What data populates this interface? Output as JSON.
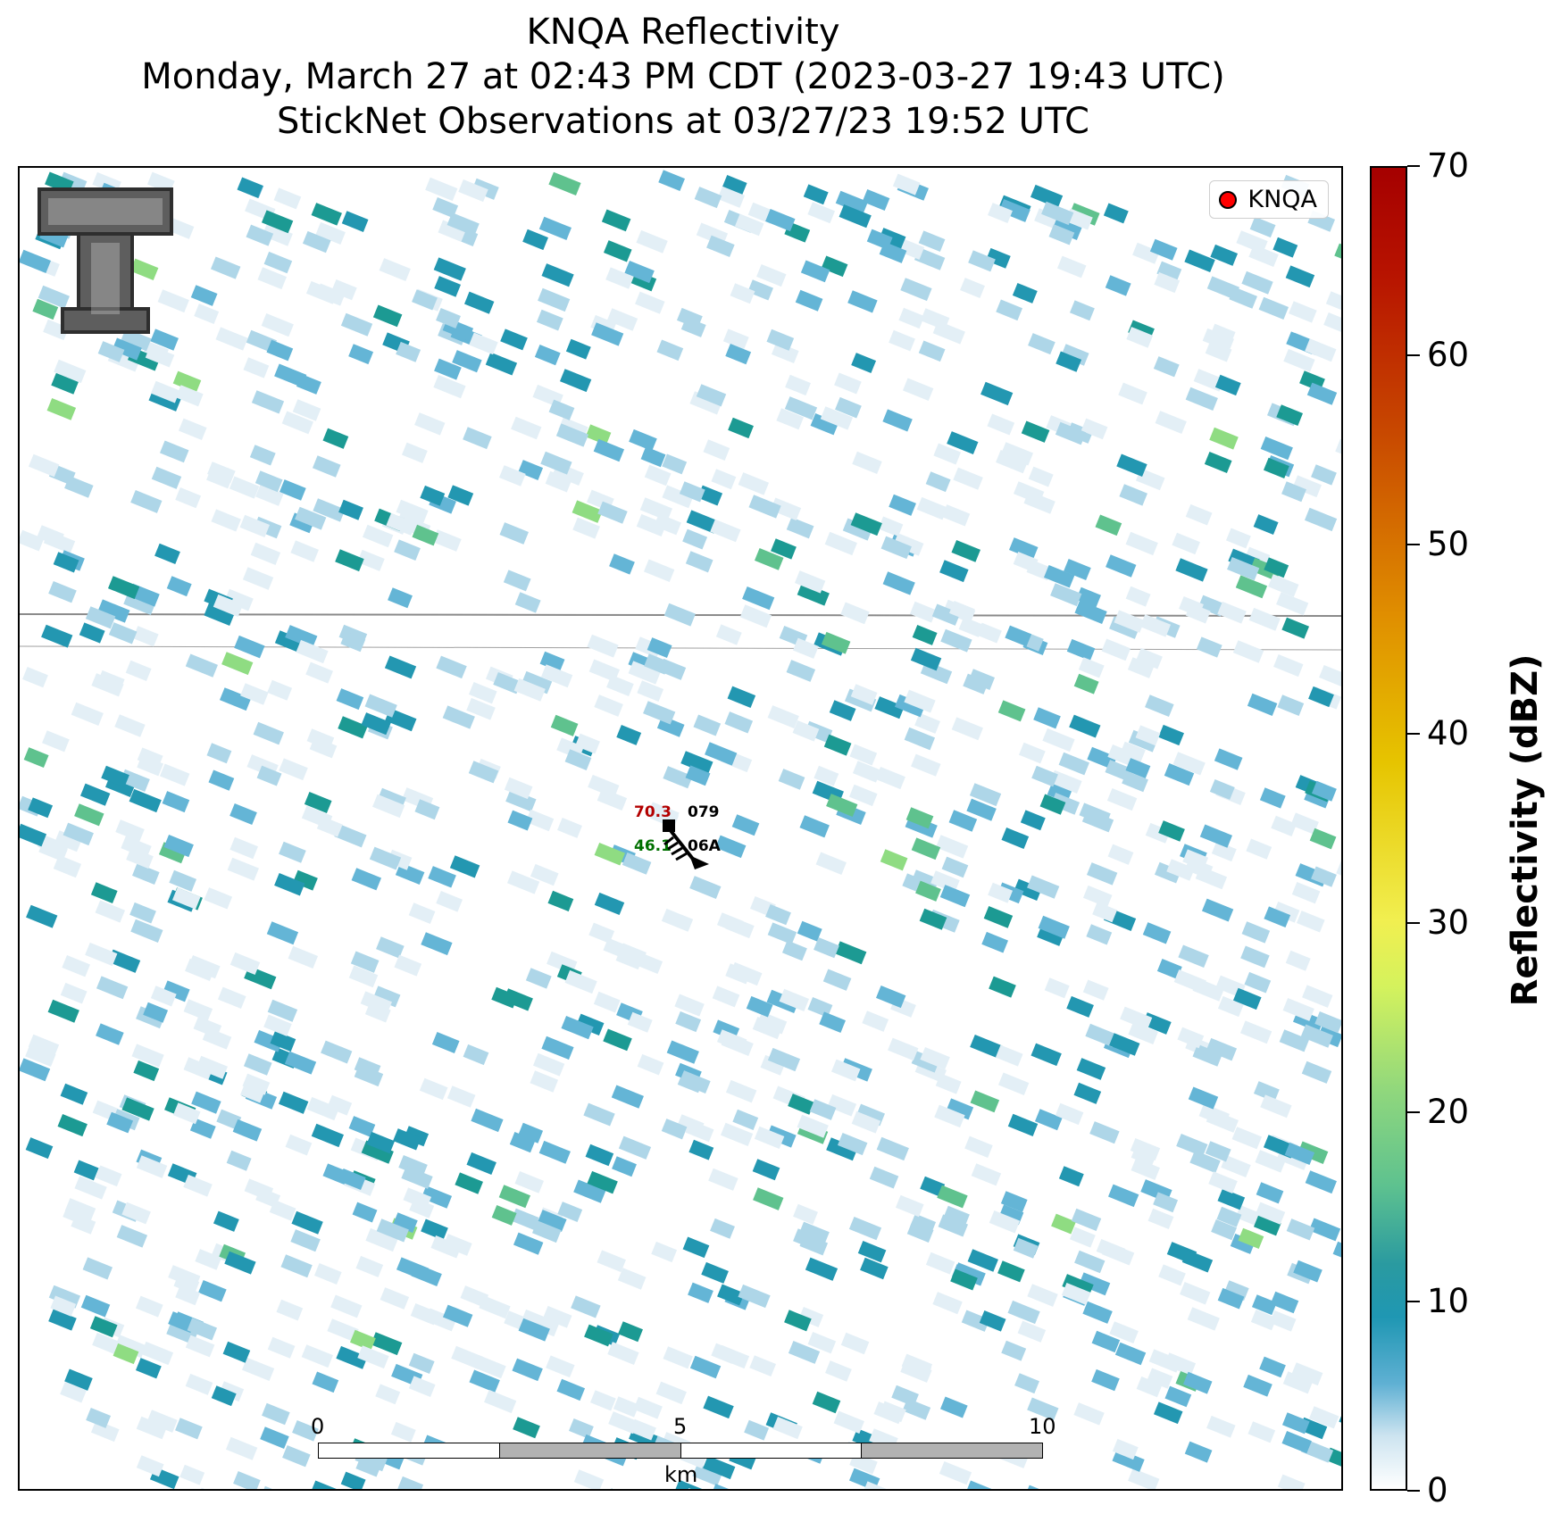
{
  "title": {
    "line1": "KNQA Reflectivity",
    "line2": "Monday, March 27 at 02:43 PM CDT (2023-03-27 19:43 UTC)",
    "line3": "StickNet Observations at 03/27/23 19:52 UTC"
  },
  "legend": {
    "label": "KNQA",
    "marker_color": "#ff0000"
  },
  "station": {
    "temp": "70.3",
    "dewpoint": "46.1",
    "id_top": "079",
    "id_bottom": "06A",
    "temp_color": "#b30000",
    "dewpoint_color": "#007000"
  },
  "scalebar": {
    "tick0": "0",
    "tick5": "5",
    "tick10": "10",
    "unit": "km"
  },
  "colorbar": {
    "title": "Reflectivity (dBZ)",
    "min": 0,
    "max": 70,
    "ticks": [
      "0",
      "10",
      "20",
      "30",
      "40",
      "50",
      "60",
      "70"
    ]
  },
  "logo": {
    "name": "texas-tech-double-t-logo"
  },
  "colors": {
    "very_light": "#e3eff6",
    "light": "#aed6e8",
    "medium": "#64b5d6",
    "teal": "#2397b1",
    "teal_dark": "#1c9a93",
    "green": "#5fc28e",
    "green_light": "#8fdc82"
  }
}
